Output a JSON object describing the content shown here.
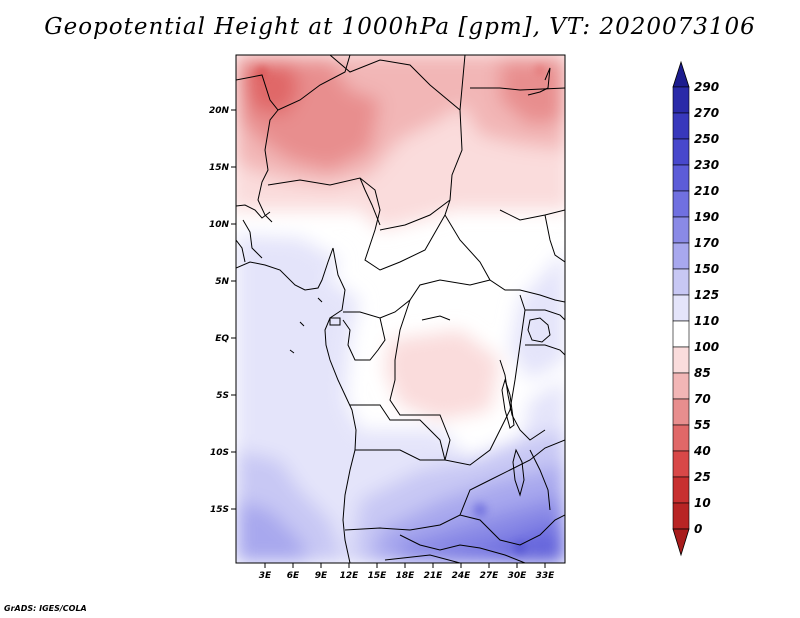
{
  "title": "Geopotential Height at 1000hPa [gpm], VT: 2020073106",
  "credit": "GrADS: IGES/COLA",
  "map": {
    "lat_labels": [
      "20N",
      "15N",
      "10N",
      "5N",
      "EQ",
      "5S",
      "10S",
      "15S"
    ],
    "lon_labels": [
      "3E",
      "6E",
      "9E",
      "12E",
      "15E",
      "18E",
      "21E",
      "24E",
      "27E",
      "30E",
      "33E"
    ]
  },
  "colorbar": {
    "levels": [
      "290",
      "270",
      "250",
      "230",
      "210",
      "190",
      "170",
      "150",
      "125",
      "110",
      "100",
      "85",
      "70",
      "55",
      "40",
      "25",
      "10",
      "0"
    ],
    "colors": [
      "#1c1c8e",
      "#2a2aa8",
      "#3838bc",
      "#4848cc",
      "#5c5cd8",
      "#7070e0",
      "#8a8ae6",
      "#a8a8ee",
      "#c8c8f4",
      "#e4e4fa",
      "#ffffff",
      "#fadcdc",
      "#f2b6b6",
      "#e88e8e",
      "#e06868",
      "#d84848",
      "#c83030",
      "#a81c1c"
    ]
  }
}
